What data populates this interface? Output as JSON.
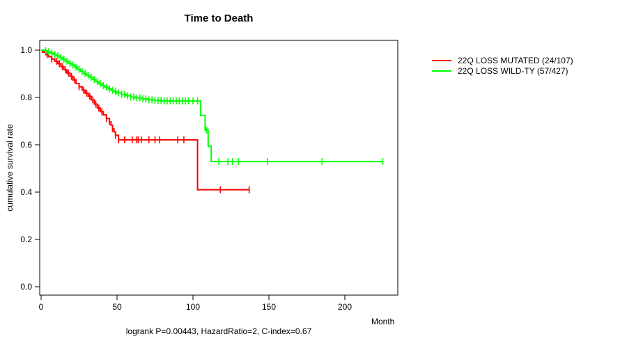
{
  "title": "Time to Death",
  "footer": "logrank P=0.00443, HazardRatio=2, C-index=0.67",
  "x_axis": {
    "label": "Month",
    "ticks": [
      0,
      50,
      100,
      150,
      200
    ]
  },
  "y_axis": {
    "label": "cumulative survival rate",
    "ticks": [
      0.0,
      0.2,
      0.4,
      0.6,
      0.8,
      1.0
    ]
  },
  "legend": {
    "items": [
      {
        "label": "22Q LOSS MUTATED (24/107)",
        "color": "#ff0000"
      },
      {
        "label": "22Q LOSS WILD-TY (57/427)",
        "color": "#00ff00"
      }
    ]
  },
  "chart_data": {
    "type": "line",
    "subtype": "kaplan_meier_step",
    "title": "Time to Death",
    "xlabel": "Month",
    "ylabel": "cumulative survival rate",
    "xlim": [
      0,
      235
    ],
    "ylim": [
      0.0,
      1.0
    ],
    "x_ticks": [
      0,
      50,
      100,
      150,
      200
    ],
    "y_ticks": [
      0.0,
      0.2,
      0.4,
      0.6,
      0.8,
      1.0
    ],
    "grid": false,
    "legend_position": "right-outside",
    "stats": {
      "logrank_p": "0.00443",
      "hazard_ratio": "2",
      "c_index": "0.67"
    },
    "series": [
      {
        "name": "22Q LOSS MUTATED (24/107)",
        "color": "#ff0000",
        "events": 24,
        "n": 107,
        "steps": [
          [
            0,
            1.0
          ],
          [
            1,
            0.991
          ],
          [
            3,
            0.981
          ],
          [
            5,
            0.972
          ],
          [
            7,
            0.962
          ],
          [
            9,
            0.953
          ],
          [
            11,
            0.943
          ],
          [
            13,
            0.93
          ],
          [
            15,
            0.917
          ],
          [
            17,
            0.903
          ],
          [
            19,
            0.889
          ],
          [
            21,
            0.874
          ],
          [
            23,
            0.859
          ],
          [
            25,
            0.845
          ],
          [
            27,
            0.831
          ],
          [
            29,
            0.818
          ],
          [
            31,
            0.805
          ],
          [
            33,
            0.79
          ],
          [
            35,
            0.772
          ],
          [
            37,
            0.755
          ],
          [
            39,
            0.74
          ],
          [
            41,
            0.726
          ],
          [
            43,
            0.711
          ],
          [
            45,
            0.697
          ],
          [
            46,
            0.683
          ],
          [
            47,
            0.668
          ],
          [
            48,
            0.654
          ],
          [
            49,
            0.64
          ],
          [
            51,
            0.621
          ],
          [
            103,
            0.41
          ]
        ],
        "end_month": 137,
        "censor_months": [
          4,
          7,
          10,
          12,
          14,
          16,
          18,
          20,
          22,
          25,
          28,
          30,
          32,
          34,
          36,
          38,
          40,
          43,
          45,
          47,
          49,
          51,
          55,
          60,
          63,
          64,
          66,
          71,
          75,
          78,
          90,
          94,
          118,
          137
        ]
      },
      {
        "name": "22Q LOSS WILD-TY (57/427)",
        "color": "#00ff00",
        "events": 57,
        "n": 427,
        "steps": [
          [
            0,
            1.0
          ],
          [
            2,
            0.997
          ],
          [
            4,
            0.993
          ],
          [
            6,
            0.988
          ],
          [
            8,
            0.982
          ],
          [
            10,
            0.976
          ],
          [
            12,
            0.969
          ],
          [
            14,
            0.961
          ],
          [
            16,
            0.953
          ],
          [
            18,
            0.945
          ],
          [
            20,
            0.937
          ],
          [
            22,
            0.928
          ],
          [
            24,
            0.919
          ],
          [
            26,
            0.91
          ],
          [
            28,
            0.901
          ],
          [
            30,
            0.893
          ],
          [
            32,
            0.885
          ],
          [
            34,
            0.876
          ],
          [
            36,
            0.867
          ],
          [
            38,
            0.858
          ],
          [
            40,
            0.85
          ],
          [
            42,
            0.843
          ],
          [
            44,
            0.836
          ],
          [
            46,
            0.83
          ],
          [
            48,
            0.824
          ],
          [
            50,
            0.819
          ],
          [
            53,
            0.813
          ],
          [
            56,
            0.807
          ],
          [
            59,
            0.802
          ],
          [
            62,
            0.798
          ],
          [
            66,
            0.794
          ],
          [
            70,
            0.79
          ],
          [
            75,
            0.787
          ],
          [
            80,
            0.785
          ],
          [
            105,
            0.724
          ],
          [
            108,
            0.662
          ],
          [
            110,
            0.594
          ],
          [
            112,
            0.529
          ]
        ],
        "end_month": 225,
        "censor_months": [
          3,
          5,
          7,
          9,
          11,
          13,
          15,
          17,
          19,
          21,
          23,
          25,
          27,
          29,
          31,
          33,
          35,
          37,
          39,
          41,
          43,
          45,
          47,
          49,
          51,
          53,
          55,
          57,
          59,
          61,
          63,
          65,
          67,
          69,
          71,
          73,
          75,
          77,
          79,
          81,
          83,
          85,
          87,
          89,
          91,
          93,
          95,
          97,
          100,
          103,
          109,
          117,
          123,
          126,
          130,
          149,
          185,
          225
        ]
      }
    ]
  }
}
